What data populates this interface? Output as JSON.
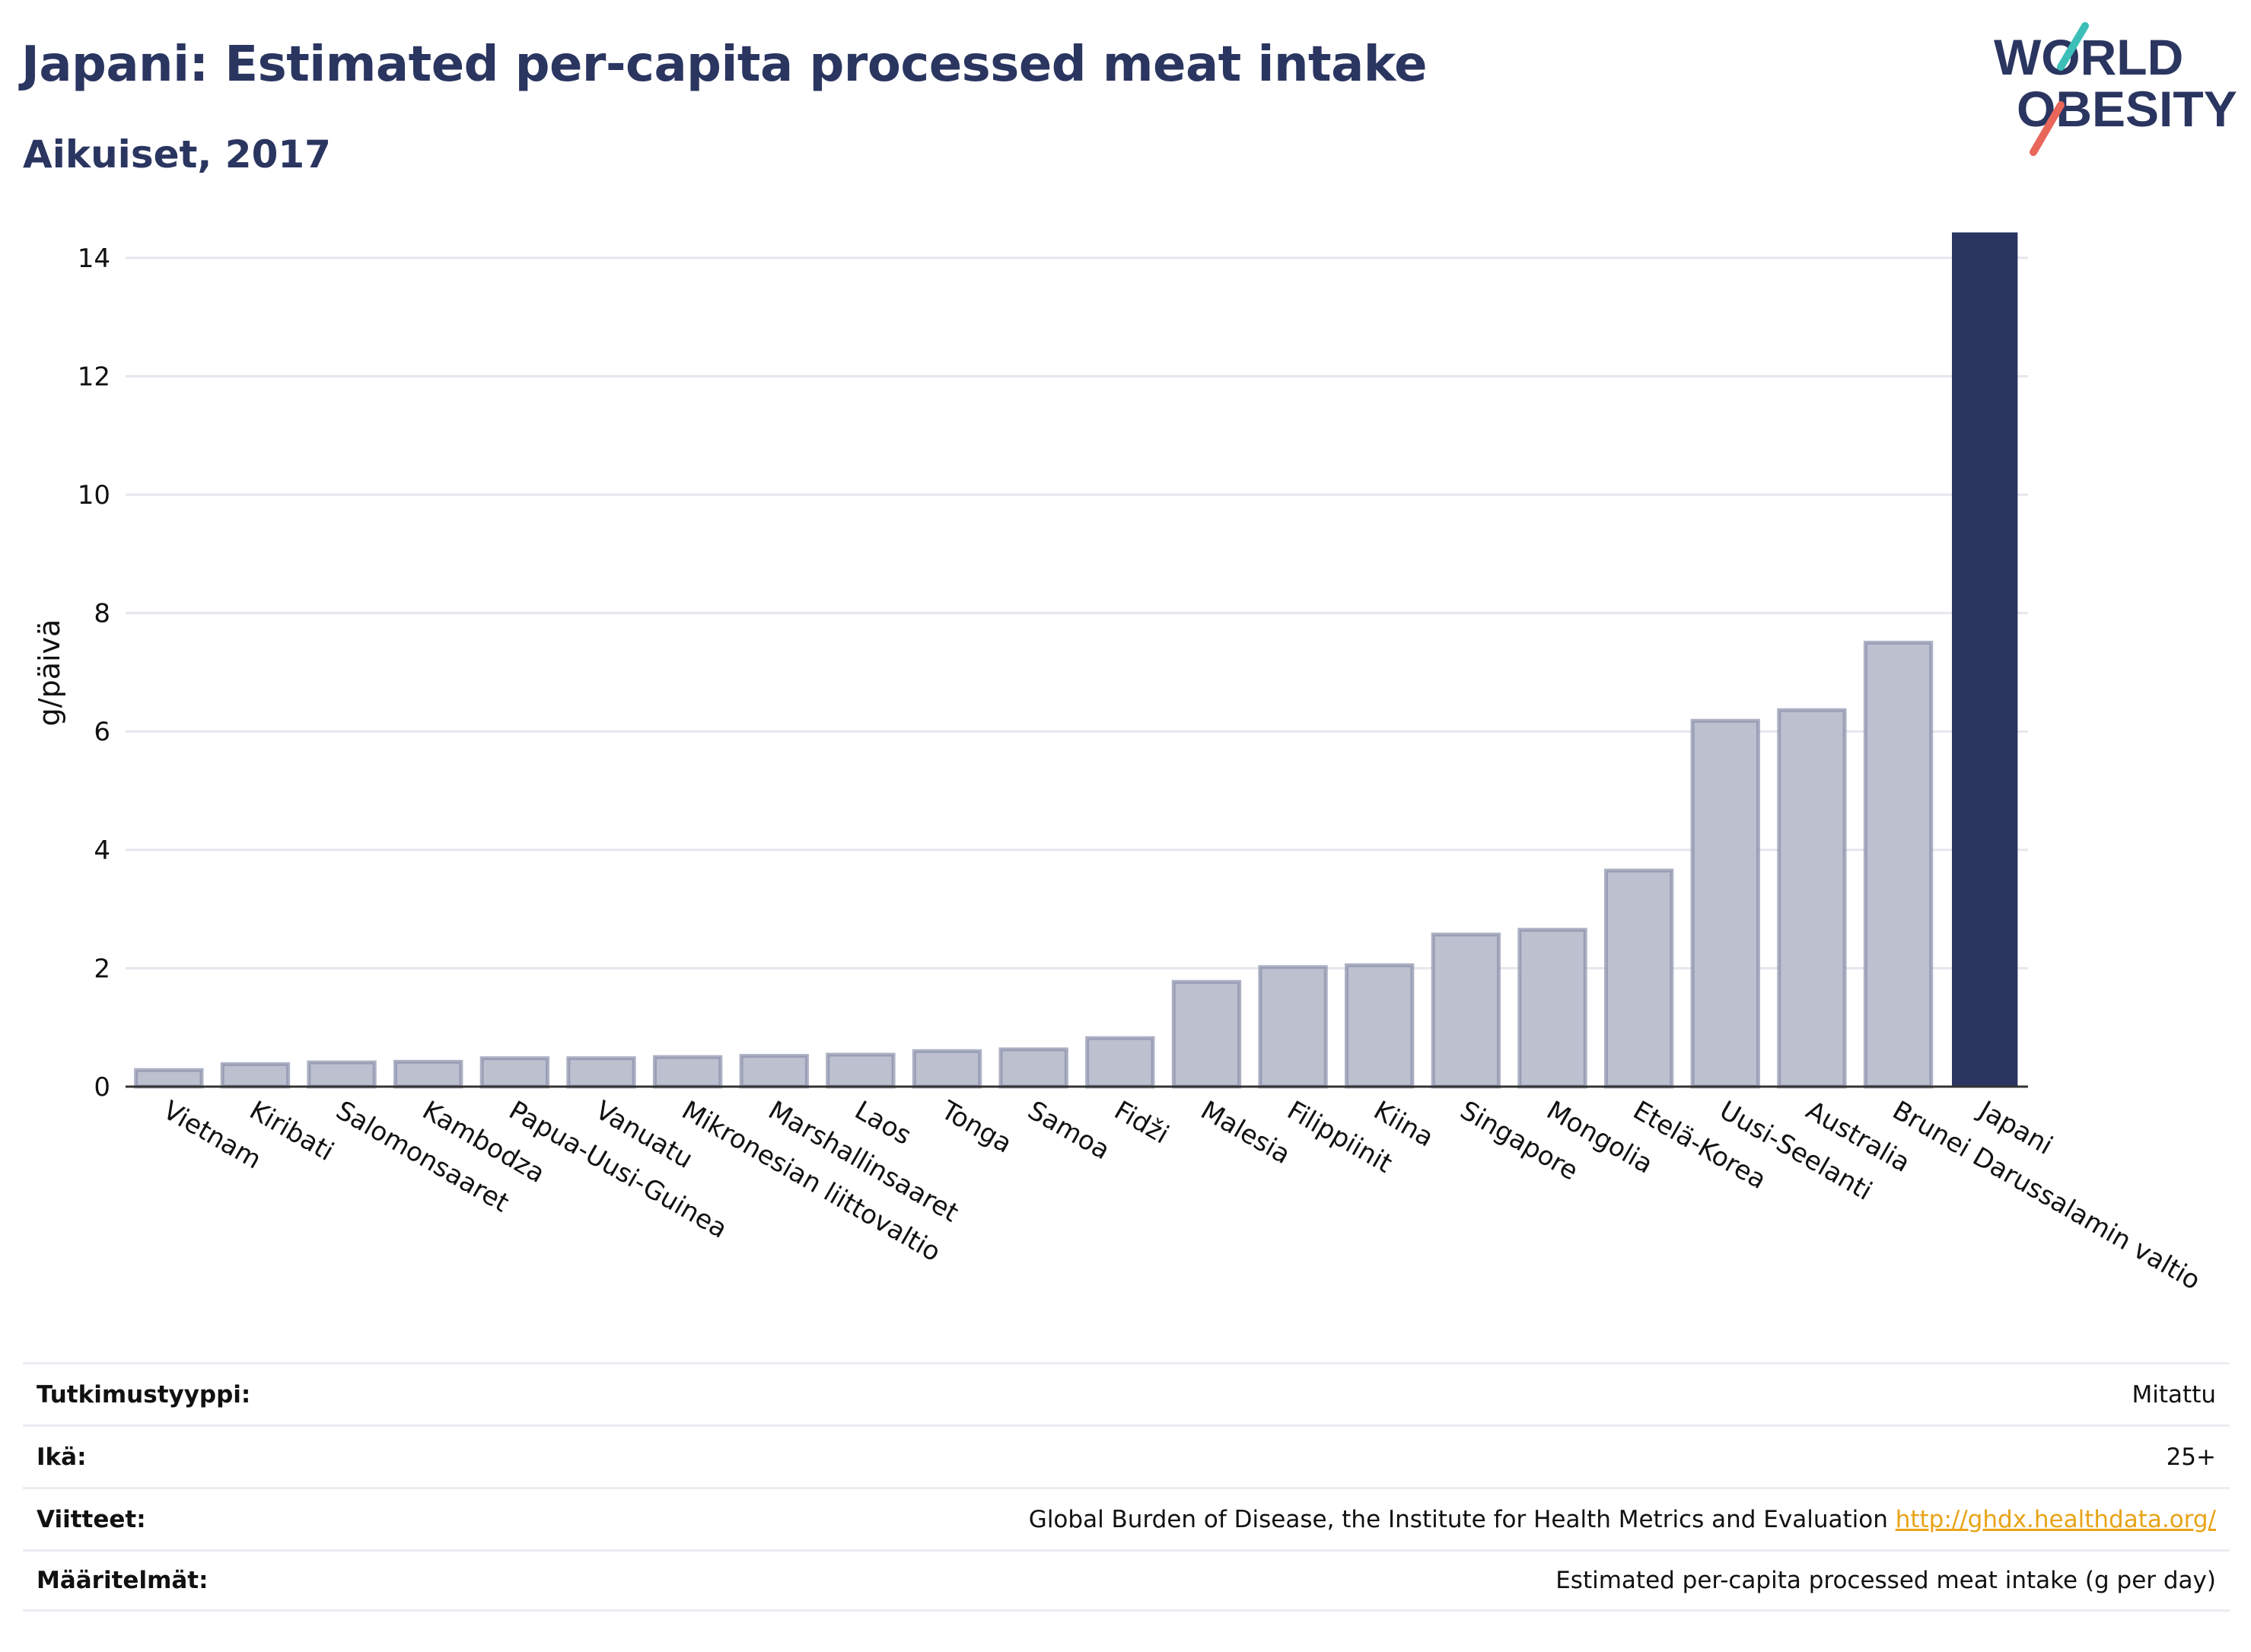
{
  "header": {
    "title": "Japani: Estimated per-capita processed meat intake",
    "subtitle": "Aikuiset, 2017"
  },
  "logo": {
    "line1": "WORLD",
    "line2": "OBESITY"
  },
  "chart_data": {
    "type": "bar",
    "ylabel": "g/päivä",
    "ylim": [
      0,
      14.5
    ],
    "yticks": [
      0,
      2,
      4,
      6,
      8,
      10,
      12,
      14
    ],
    "grid": true,
    "categories": [
      "Vietnam",
      "Kiribati",
      "Salomonsaaret",
      "Kambodza",
      "Papua-Uusi-Guinea",
      "Vanuatu",
      "Mikronesian liittovaltio",
      "Marshallinsaaret",
      "Laos",
      "Tonga",
      "Samoa",
      "Fidži",
      "Malesia",
      "Filippiinit",
      "Kiina",
      "Singapore",
      "Mongolia",
      "Etelä-Korea",
      "Uusi-Seelanti",
      "Australia",
      "Brunei Darussalamin valtio",
      "Japani"
    ],
    "values": [
      0.28,
      0.38,
      0.41,
      0.42,
      0.48,
      0.48,
      0.5,
      0.52,
      0.54,
      0.6,
      0.63,
      0.82,
      1.77,
      2.02,
      2.05,
      2.57,
      2.65,
      3.65,
      6.18,
      6.36,
      7.5,
      14.43
    ],
    "highlight": "Japani",
    "colors": {
      "highlight": "#2a3560",
      "other": "#bcc0cf",
      "other_border": "#8a90ab"
    }
  },
  "info": [
    {
      "label": "Tutkimustyyppi:",
      "value": "Mitattu",
      "link": ""
    },
    {
      "label": "Ikä:",
      "value": "25+",
      "link": ""
    },
    {
      "label": "Viitteet:",
      "value": "Global Burden of Disease, the Institute for Health Metrics and Evaluation",
      "link": "http://ghdx.healthdata.org/"
    },
    {
      "label": "Määritelmät:",
      "value": "Estimated per-capita processed meat intake (g per day)",
      "link": ""
    }
  ]
}
